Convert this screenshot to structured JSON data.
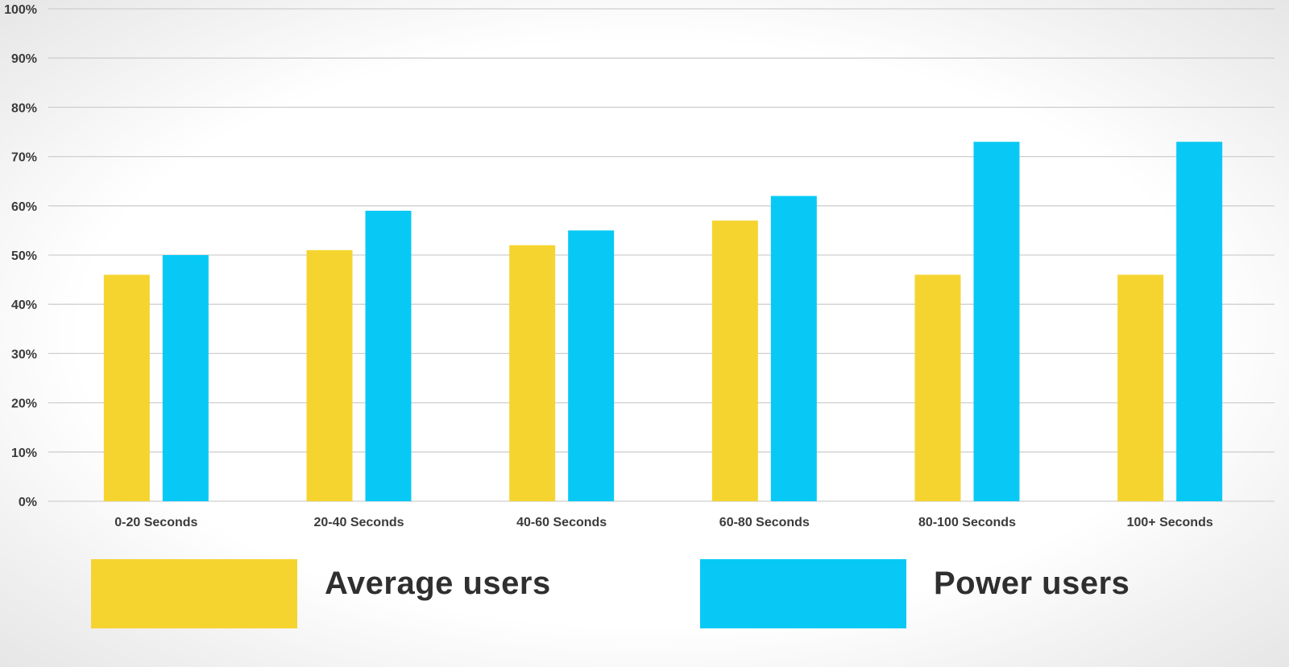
{
  "chart_data": {
    "type": "bar",
    "categories": [
      "0-20 Seconds",
      "20-40 Seconds",
      "40-60 Seconds",
      "60-80 Seconds",
      "80-100 Seconds",
      "100+ Seconds"
    ],
    "series": [
      {
        "name": "Average users",
        "color": "#F5D430",
        "values": [
          46,
          51,
          52,
          57,
          46,
          46
        ]
      },
      {
        "name": "Power users",
        "color": "#08C9F5",
        "values": [
          50,
          59,
          55,
          62,
          73,
          73
        ]
      }
    ],
    "yticks": [
      "0%",
      "10%",
      "20%",
      "30%",
      "40%",
      "50%",
      "60%",
      "70%",
      "80%",
      "90%",
      "100%"
    ],
    "ylim": [
      0,
      100
    ],
    "grid": true,
    "legend_position": "bottom",
    "title": "",
    "xlabel": "",
    "ylabel": ""
  },
  "colors": {
    "average": "#F5D430",
    "power": "#08C9F5",
    "grid": "#cfcfcf",
    "text": "#3b3b3b"
  }
}
